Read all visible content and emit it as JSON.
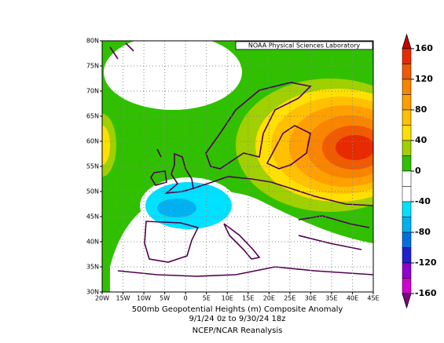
{
  "header": {
    "credit": "NOAA Physical Sciences Laboratory"
  },
  "axes": {
    "x_ticks": [
      "20W",
      "15W",
      "10W",
      "5W",
      "0",
      "5E",
      "10E",
      "15E",
      "20E",
      "25E",
      "30E",
      "35E",
      "40E",
      "45E"
    ],
    "y_ticks": [
      "80N",
      "75N",
      "70N",
      "65N",
      "60N",
      "55N",
      "50N",
      "45N",
      "40N",
      "35N",
      "30N"
    ]
  },
  "caption": {
    "line1": "500mb Geopotential Heights (m)   Composite Anomaly",
    "line2": "9/1/24 0z  to 9/30/24 18z",
    "line3": "NCEP/NCAR Reanalysis"
  },
  "colorbar": {
    "ticks": [
      160,
      120,
      80,
      40,
      0,
      -40,
      -80,
      -120,
      -160
    ],
    "colors": [
      "#c80000",
      "#e82a00",
      "#f05a00",
      "#f88400",
      "#ffa000",
      "#ffc000",
      "#ffe000",
      "#a0d000",
      "#30c000",
      "#ffffff",
      "#ffffff",
      "#00e0ff",
      "#00b0f0",
      "#0070e0",
      "#2020d0",
      "#9000d0",
      "#d000d0",
      "#800080"
    ]
  }
}
